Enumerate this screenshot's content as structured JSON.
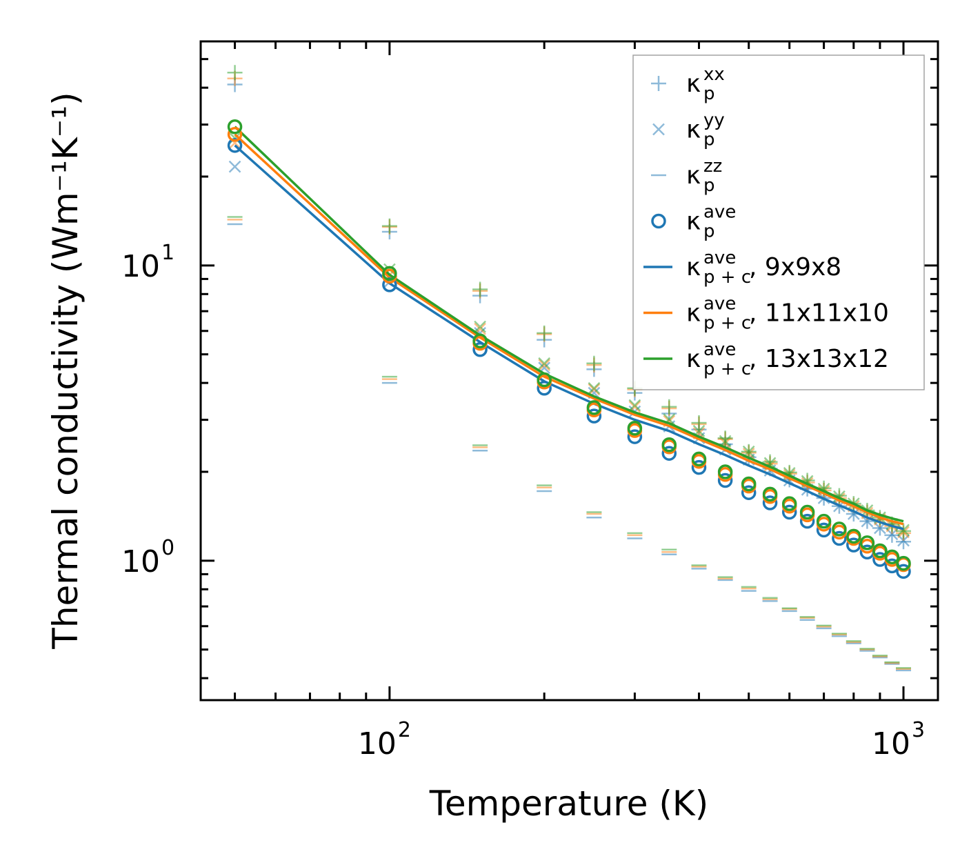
{
  "chart_data": {
    "type": "scatter",
    "xlabel": "Temperature (K)",
    "ylabel": "Thermal conductivity (Wm⁻¹K⁻¹)",
    "xscale": "log",
    "yscale": "log",
    "xlim": [
      42.9,
      1167
    ],
    "ylim": [
      0.337,
      57.4
    ],
    "xticks": [
      {
        "value": 100,
        "base": "10",
        "exp": "2"
      },
      {
        "value": 1000,
        "base": "10",
        "exp": "3"
      }
    ],
    "yticks": [
      {
        "value": 1,
        "base": "10",
        "exp": "0"
      },
      {
        "value": 10,
        "base": "10",
        "exp": "1"
      }
    ],
    "legend_position": "top-right",
    "grid": false,
    "colors": {
      "blue": "#1f77b4",
      "orange": "#ff7f0e",
      "green": "#2ca02c"
    },
    "x": [
      50,
      100,
      150,
      200,
      250,
      300,
      350,
      400,
      450,
      500,
      550,
      600,
      650,
      700,
      750,
      800,
      850,
      900,
      950,
      1000
    ],
    "grids": [
      {
        "name": "9x9x8",
        "color": "#1f77b4",
        "kxx": [
          41,
          13.0,
          7.9,
          5.6,
          4.45,
          3.7,
          3.15,
          2.78,
          2.48,
          2.24,
          2.05,
          1.88,
          1.75,
          1.63,
          1.53,
          1.44,
          1.36,
          1.29,
          1.22,
          1.16
        ],
        "kyy": [
          21.6,
          8.8,
          5.9,
          4.5,
          3.7,
          3.2,
          2.85,
          2.6,
          2.38,
          2.2,
          2.02,
          1.87,
          1.74,
          1.63,
          1.53,
          1.44,
          1.36,
          1.29,
          1.23,
          1.17
        ],
        "kzz": [
          13.8,
          4.0,
          2.36,
          1.72,
          1.4,
          1.19,
          1.05,
          0.94,
          0.86,
          0.79,
          0.73,
          0.675,
          0.63,
          0.59,
          0.555,
          0.525,
          0.495,
          0.47,
          0.447,
          0.425
        ],
        "kave": [
          25.5,
          8.6,
          5.19,
          3.84,
          3.09,
          2.63,
          2.31,
          2.07,
          1.87,
          1.7,
          1.57,
          1.46,
          1.36,
          1.27,
          1.19,
          1.13,
          1.07,
          1.01,
          0.96,
          0.92
        ],
        "kpc": [
          25.5,
          8.7,
          5.5,
          4.05,
          3.4,
          3.0,
          2.75,
          2.48,
          2.28,
          2.1,
          1.96,
          1.83,
          1.72,
          1.62,
          1.54,
          1.47,
          1.4,
          1.35,
          1.31,
          1.28
        ]
      },
      {
        "name": "11x11x10",
        "color": "#ff7f0e",
        "kxx": [
          43,
          13.5,
          8.2,
          5.85,
          4.6,
          3.8,
          3.28,
          2.9,
          2.58,
          2.32,
          2.13,
          1.97,
          1.84,
          1.73,
          1.63,
          1.54,
          1.46,
          1.38,
          1.31,
          1.24
        ],
        "kyy": [
          26,
          9.3,
          6.1,
          4.6,
          3.8,
          3.32,
          2.97,
          2.7,
          2.5,
          2.3,
          2.1,
          1.95,
          1.83,
          1.72,
          1.62,
          1.53,
          1.45,
          1.38,
          1.31,
          1.25
        ],
        "kzz": [
          14.3,
          4.12,
          2.42,
          1.77,
          1.44,
          1.22,
          1.07,
          0.955,
          0.87,
          0.805,
          0.74,
          0.685,
          0.64,
          0.598,
          0.562,
          0.53,
          0.5,
          0.474,
          0.45,
          0.43
        ],
        "kave": [
          27.8,
          9.2,
          5.45,
          4.03,
          3.24,
          2.76,
          2.43,
          2.17,
          1.96,
          1.79,
          1.65,
          1.53,
          1.43,
          1.33,
          1.25,
          1.19,
          1.12,
          1.06,
          1.01,
          0.97
        ],
        "kpc": [
          27.8,
          9.1,
          5.7,
          4.2,
          3.54,
          3.12,
          2.86,
          2.58,
          2.37,
          2.18,
          2.04,
          1.9,
          1.79,
          1.69,
          1.6,
          1.53,
          1.46,
          1.4,
          1.36,
          1.33
        ]
      },
      {
        "name": "13x13x12",
        "color": "#2ca02c",
        "kxx": [
          45,
          13.6,
          8.3,
          5.9,
          4.66,
          3.84,
          3.32,
          2.93,
          2.6,
          2.34,
          2.16,
          1.99,
          1.87,
          1.76,
          1.66,
          1.56,
          1.48,
          1.4,
          1.33,
          1.26
        ],
        "kyy": [
          27,
          9.7,
          6.2,
          4.66,
          3.84,
          3.36,
          3.01,
          2.75,
          2.54,
          2.34,
          2.14,
          1.98,
          1.86,
          1.75,
          1.65,
          1.56,
          1.48,
          1.4,
          1.33,
          1.27
        ],
        "kzz": [
          14.6,
          4.2,
          2.46,
          1.8,
          1.46,
          1.24,
          1.09,
          0.965,
          0.88,
          0.815,
          0.748,
          0.69,
          0.645,
          0.603,
          0.566,
          0.534,
          0.503,
          0.477,
          0.453,
          0.433
        ],
        "kave": [
          29.5,
          9.4,
          5.55,
          4.1,
          3.3,
          2.81,
          2.47,
          2.21,
          2.0,
          1.82,
          1.68,
          1.56,
          1.46,
          1.36,
          1.28,
          1.21,
          1.15,
          1.08,
          1.03,
          0.98
        ],
        "kpc": [
          29.5,
          9.3,
          5.8,
          4.3,
          3.6,
          3.18,
          2.92,
          2.63,
          2.42,
          2.23,
          2.08,
          1.94,
          1.82,
          1.72,
          1.63,
          1.56,
          1.48,
          1.43,
          1.39,
          1.36
        ]
      }
    ],
    "legend": [
      {
        "marker": "plus",
        "main": "κ",
        "sup": "xx",
        "sub": "p",
        "suffix": ""
      },
      {
        "marker": "x",
        "main": "κ",
        "sup": "yy",
        "sub": "p",
        "suffix": ""
      },
      {
        "marker": "dash",
        "main": "κ",
        "sup": "zz",
        "sub": "p",
        "suffix": ""
      },
      {
        "marker": "circle",
        "main": "κ",
        "sup": "ave",
        "sub": "p",
        "suffix": ""
      },
      {
        "marker": "line",
        "color": "#1f77b4",
        "main": "κ",
        "sup": "ave",
        "sub": "p + c",
        "suffix": ", 9x9x8"
      },
      {
        "marker": "line",
        "color": "#ff7f0e",
        "main": "κ",
        "sup": "ave",
        "sub": "p + c",
        "suffix": ", 11x11x10"
      },
      {
        "marker": "line",
        "color": "#2ca02c",
        "main": "κ",
        "sup": "ave",
        "sub": "p + c",
        "suffix": ", 13x13x12"
      }
    ]
  }
}
